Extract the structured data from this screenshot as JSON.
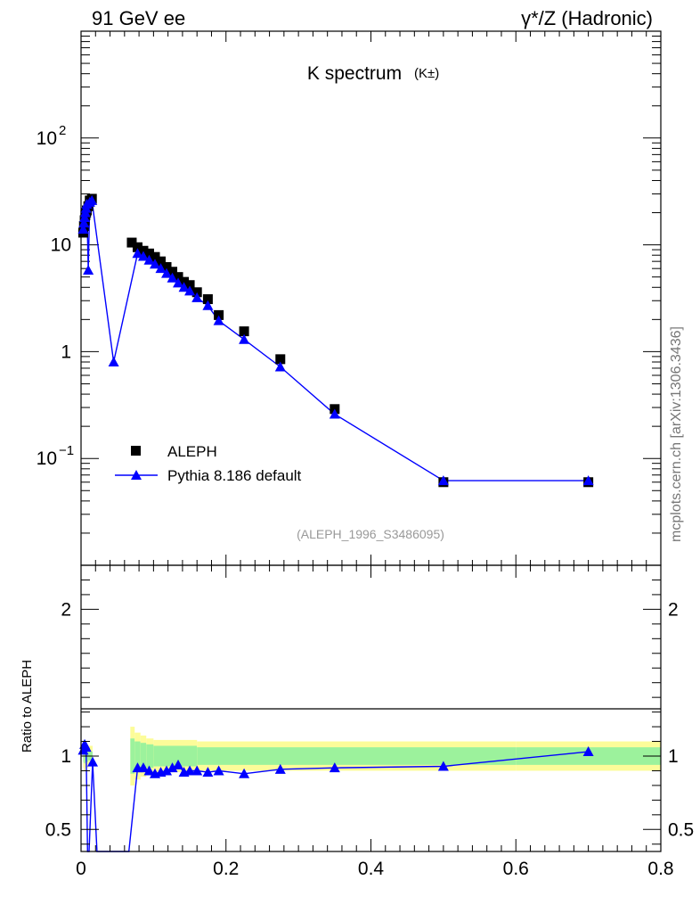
{
  "header": {
    "left": "91 GeV ee",
    "right": "γ*/Z (Hadronic)"
  },
  "plot_title": "K spectrum",
  "plot_title_sub": "(K±)",
  "side_label": "mcplots.cern.ch [arXiv:1306.3436]",
  "reference": "(ALEPH_1996_S3486095)",
  "ratio_ylabel": "Ratio to ALEPH",
  "legend": {
    "data": "ALEPH",
    "mc": "Pythia 8.186 default"
  },
  "colors": {
    "data": "#000000",
    "mc": "#0000ff",
    "band_inner": "#9cf29c",
    "band_outer": "#fcfc99"
  },
  "chart_data": [
    {
      "type": "scatter",
      "title": "K spectrum (K±)",
      "xlim": [
        0,
        0.8
      ],
      "ylim": [
        0.01,
        1000
      ],
      "yscale": "log",
      "y_ticks": [
        {
          "value": 0.1,
          "base": "10",
          "exp": "−1"
        },
        {
          "value": 1,
          "base": "1",
          "exp": ""
        },
        {
          "value": 10,
          "base": "10",
          "exp": ""
        },
        {
          "value": 100,
          "base": "10",
          "exp": "2"
        }
      ],
      "legend_position": "bottom-left",
      "series": [
        {
          "name": "ALEPH",
          "marker": "square",
          "x": [
            0.003,
            0.004,
            0.005,
            0.006,
            0.007,
            0.008,
            0.01,
            0.012,
            0.015,
            0.07,
            0.078,
            0.086,
            0.094,
            0.102,
            0.11,
            0.118,
            0.126,
            0.134,
            0.142,
            0.15,
            0.16,
            0.175,
            0.19,
            0.225,
            0.275,
            0.35,
            0.5,
            0.7
          ],
          "y": [
            13,
            15,
            17,
            19,
            20,
            21,
            23,
            26,
            27,
            10.5,
            9.5,
            8.8,
            8.3,
            7.7,
            7.0,
            6.2,
            5.6,
            5.0,
            4.5,
            4.2,
            3.6,
            3.1,
            2.2,
            1.55,
            0.85,
            0.29,
            0.06,
            0.06
          ]
        },
        {
          "name": "Pythia 8.186 default",
          "marker": "triangle",
          "x": [
            0.003,
            0.004,
            0.005,
            0.006,
            0.007,
            0.008,
            0.01,
            0.012,
            0.015,
            0.045,
            0.078,
            0.086,
            0.094,
            0.102,
            0.11,
            0.118,
            0.126,
            0.134,
            0.142,
            0.15,
            0.16,
            0.175,
            0.19,
            0.225,
            0.275,
            0.35,
            0.5,
            0.7
          ],
          "y": [
            14,
            16,
            18,
            20,
            22,
            24,
            5.8,
            25,
            26,
            0.8,
            8.3,
            7.8,
            7.2,
            6.6,
            6.0,
            5.4,
            4.9,
            4.4,
            4.0,
            3.7,
            3.2,
            2.7,
            1.95,
            1.3,
            0.72,
            0.26,
            0.062,
            0.062
          ]
        }
      ]
    },
    {
      "type": "line",
      "ylabel": "Ratio to ALEPH",
      "xlim": [
        0,
        0.8
      ],
      "ylim": [
        0.35,
        2.3
      ],
      "x_ticks": [
        0,
        0.2,
        0.4,
        0.6,
        0.8
      ],
      "x_tick_labels": [
        "0",
        "0.2",
        "0.4",
        "0.6",
        "0.8"
      ],
      "y_ticks": [
        0.5,
        1,
        2
      ],
      "y_tick_labels": [
        "0.5",
        "1",
        "2"
      ],
      "series": [
        {
          "name": "Pythia 8.186 default",
          "x": [
            0.003,
            0.005,
            0.007,
            0.009,
            0.011,
            0.016,
            0.022,
            0.066,
            0.078,
            0.086,
            0.094,
            0.102,
            0.11,
            0.118,
            0.126,
            0.134,
            0.142,
            0.15,
            0.16,
            0.175,
            0.19,
            0.225,
            0.275,
            0.35,
            0.5,
            0.7
          ],
          "y": [
            1.04,
            1.08,
            1.06,
            0.35,
            0.35,
            0.96,
            0.35,
            0.35,
            0.92,
            0.92,
            0.9,
            0.88,
            0.89,
            0.9,
            0.92,
            0.94,
            0.89,
            0.9,
            0.9,
            0.89,
            0.9,
            0.88,
            0.91,
            0.92,
            0.93,
            1.03
          ]
        }
      ],
      "uncertainty_bands": [
        {
          "x0": 0.003,
          "x1": 0.004,
          "inner": [
            0.96,
            1.04
          ],
          "outer": [
            0.92,
            1.08
          ]
        },
        {
          "x0": 0.004,
          "x1": 0.006,
          "inner": [
            0.95,
            1.05
          ],
          "outer": [
            0.9,
            1.1
          ]
        },
        {
          "x0": 0.006,
          "x1": 0.01,
          "inner": [
            0.96,
            1.04
          ],
          "outer": [
            0.92,
            1.08
          ]
        },
        {
          "x0": 0.01,
          "x1": 0.016,
          "inner": [
            0.97,
            1.03
          ],
          "outer": [
            0.93,
            1.07
          ]
        },
        {
          "x0": 0.068,
          "x1": 0.074,
          "inner": [
            0.88,
            1.12
          ],
          "outer": [
            0.8,
            1.2
          ]
        },
        {
          "x0": 0.074,
          "x1": 0.082,
          "inner": [
            0.9,
            1.1
          ],
          "outer": [
            0.84,
            1.16
          ]
        },
        {
          "x0": 0.082,
          "x1": 0.09,
          "inner": [
            0.91,
            1.09
          ],
          "outer": [
            0.86,
            1.14
          ]
        },
        {
          "x0": 0.09,
          "x1": 0.1,
          "inner": [
            0.92,
            1.08
          ],
          "outer": [
            0.88,
            1.12
          ]
        },
        {
          "x0": 0.1,
          "x1": 0.16,
          "inner": [
            0.93,
            1.07
          ],
          "outer": [
            0.89,
            1.11
          ]
        },
        {
          "x0": 0.16,
          "x1": 0.6,
          "inner": [
            0.94,
            1.06
          ],
          "outer": [
            0.9,
            1.1
          ]
        },
        {
          "x0": 0.6,
          "x1": 0.8,
          "inner": [
            0.94,
            1.06
          ],
          "outer": [
            0.9,
            1.1
          ]
        }
      ]
    }
  ]
}
